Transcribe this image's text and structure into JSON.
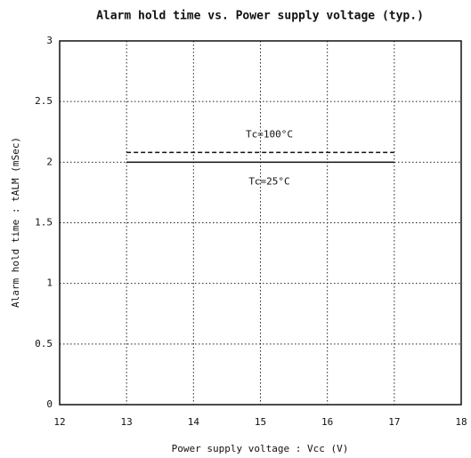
{
  "chart_data": {
    "type": "line",
    "title": "Alarm hold time vs. Power supply voltage (typ.)",
    "x_label": "Power supply voltage : Vcc (V)",
    "y_label": "Alarm hold time : tALM (mSec)",
    "x": [
      13,
      17
    ],
    "series": [
      {
        "name": "Tc=100°C",
        "color": "#111111",
        "dash": true,
        "values": [
          2.08,
          2.08
        ]
      },
      {
        "name": "Tc=25°C",
        "color": "#111111",
        "dash": false,
        "values": [
          2,
          2
        ]
      }
    ],
    "xlim": [
      12,
      18
    ],
    "xticks": [
      12,
      13,
      14,
      15,
      16,
      17,
      18
    ],
    "ylim": [
      0,
      3
    ],
    "yticks": [
      0,
      0.5,
      1,
      1.5,
      2,
      2.5,
      3
    ],
    "grid": true
  }
}
